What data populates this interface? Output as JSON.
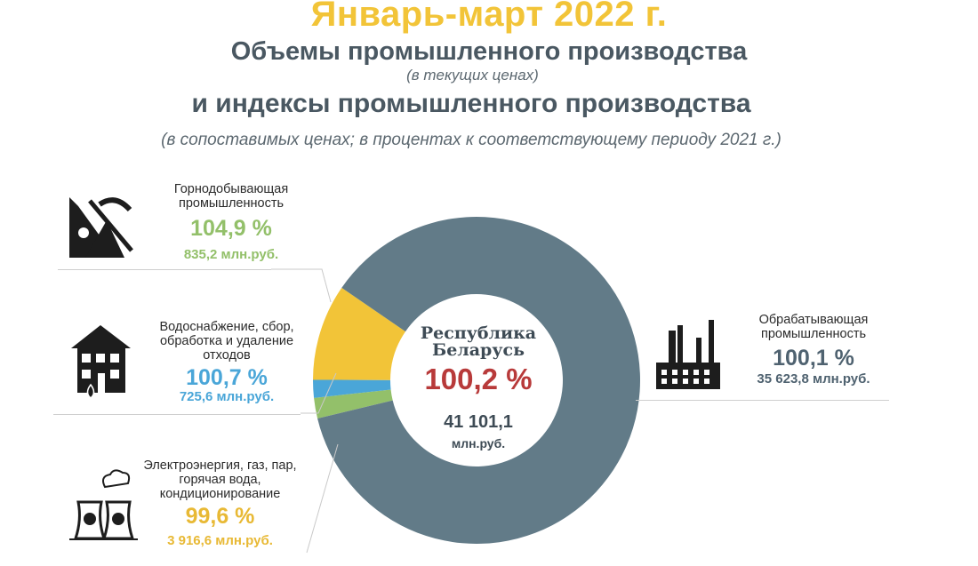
{
  "header": {
    "title": "Январь-март 2022 г.",
    "subtitle1": "Объемы промышленного производства",
    "note1": "(в текущих ценах)",
    "subtitle2": "и индексы промышленного производства",
    "note2": "(в сопоставимых ценах; в процентах к соответствующему периоду 2021 г.)"
  },
  "center": {
    "line1": "Республика",
    "line2": "Беларусь",
    "index": "100,2 %",
    "value": "41 101,1",
    "unit": "млн.руб."
  },
  "sectors": [
    {
      "name": "Горнодобывающая промышленность",
      "name_lines": [
        "Горнодобывающая",
        "промышленность"
      ],
      "index": "104,9 %",
      "value": "835,2 млн.руб.",
      "icon": "mining-icon"
    },
    {
      "name": "Водоснабжение, сбор, обработка и удаление отходов",
      "name_lines": [
        "Водоснабжение, сбор,",
        "обработка и удаление",
        "отходов"
      ],
      "index": "100,7 %",
      "value": "725,6 млн.руб.",
      "icon": "house-water-icon"
    },
    {
      "name": "Электроэнергия, газ, пар, горячая вода, кондиционирование",
      "name_lines": [
        "Электроэнергия, газ, пар,",
        "горячая вода,",
        "кондиционирование"
      ],
      "index": "99,6 %",
      "value": "3 916,6 млн.руб.",
      "icon": "power-plant-icon"
    },
    {
      "name": "Обрабатывающая промышленность",
      "name_lines": [
        "Обрабатывающая",
        "промышленность"
      ],
      "index": "100,1 %",
      "value": "35 623,8 млн.руб.",
      "icon": "factory-icon"
    }
  ],
  "chart_data": {
    "type": "pie",
    "variant": "donut",
    "unit": "млн.руб.",
    "total": 41101.1,
    "slices": [
      {
        "label": "Горнодобывающая промышленность",
        "value": 835.2,
        "index_pct": 104.9,
        "color": "#93c06a"
      },
      {
        "label": "Водоснабжение, сбор, обработка и удаление отходов",
        "value": 725.6,
        "index_pct": 100.7,
        "color": "#4aa6d8"
      },
      {
        "label": "Электроэнергия, газ, пар, горячая вода, кондиционирование",
        "value": 3916.6,
        "index_pct": 99.6,
        "color": "#f2c438"
      },
      {
        "label": "Обрабатывающая промышленность",
        "value": 35623.8,
        "index_pct": 100.1,
        "color": "#627b88"
      }
    ]
  }
}
